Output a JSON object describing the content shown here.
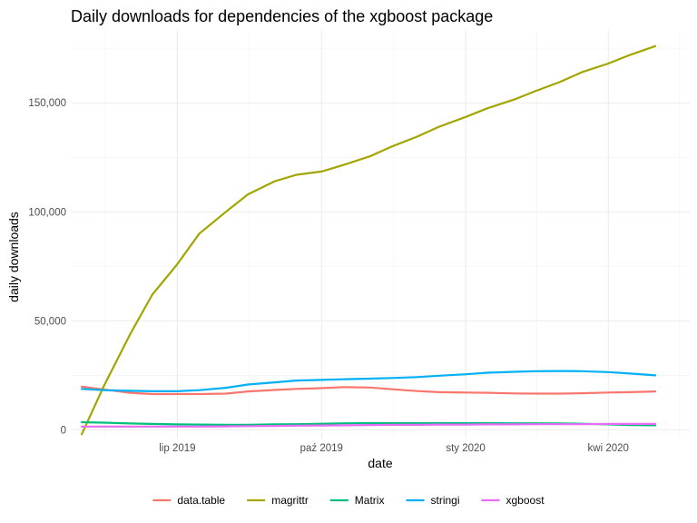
{
  "chart_data": {
    "type": "line",
    "title": "Daily downloads for dependencies of the xgboost package",
    "xlabel": "date",
    "ylabel": "daily downloads",
    "xlim": [
      "2019-04-24",
      "2020-05-23"
    ],
    "ylim": [
      -4000,
      183000
    ],
    "x_ticks": [
      {
        "date": "2019-07-01",
        "label": "lip 2019"
      },
      {
        "date": "2019-10-01",
        "label": "paź 2019"
      },
      {
        "date": "2020-01-01",
        "label": "sty 2020"
      },
      {
        "date": "2020-04-01",
        "label": "kwi 2020"
      }
    ],
    "y_ticks": [
      {
        "value": 0,
        "label": "0"
      },
      {
        "value": 50000,
        "label": "50,000"
      },
      {
        "value": 100000,
        "label": "100,000"
      },
      {
        "value": 150000,
        "label": "150,000"
      }
    ],
    "grid": true,
    "legend_position": "bottom",
    "series": [
      {
        "name": "data.table",
        "color": "#F8766D",
        "points": [
          [
            "2019-05-01",
            19800
          ],
          [
            "2019-05-15",
            18500
          ],
          [
            "2019-06-01",
            17000
          ],
          [
            "2019-06-15",
            16400
          ],
          [
            "2019-07-01",
            16400
          ],
          [
            "2019-07-15",
            16400
          ],
          [
            "2019-08-01",
            16600
          ],
          [
            "2019-08-15",
            17600
          ],
          [
            "2019-09-01",
            18300
          ],
          [
            "2019-09-15",
            18800
          ],
          [
            "2019-10-01",
            19100
          ],
          [
            "2019-10-15",
            19600
          ],
          [
            "2019-11-01",
            19400
          ],
          [
            "2019-11-15",
            18600
          ],
          [
            "2019-12-01",
            17800
          ],
          [
            "2019-12-15",
            17300
          ],
          [
            "2020-01-01",
            17100
          ],
          [
            "2020-01-15",
            17000
          ],
          [
            "2020-02-01",
            16700
          ],
          [
            "2020-02-15",
            16600
          ],
          [
            "2020-03-01",
            16600
          ],
          [
            "2020-03-15",
            16800
          ],
          [
            "2020-04-01",
            17100
          ],
          [
            "2020-04-15",
            17300
          ],
          [
            "2020-05-01",
            17600
          ]
        ]
      },
      {
        "name": "magrittr",
        "color": "#A3A500",
        "points": [
          [
            "2019-05-01",
            -2000
          ],
          [
            "2019-05-15",
            20000
          ],
          [
            "2019-06-01",
            44000
          ],
          [
            "2019-06-15",
            62000
          ],
          [
            "2019-07-01",
            76000
          ],
          [
            "2019-07-15",
            90000
          ],
          [
            "2019-08-01",
            100000
          ],
          [
            "2019-08-15",
            108000
          ],
          [
            "2019-09-01",
            114000
          ],
          [
            "2019-09-15",
            117000
          ],
          [
            "2019-10-01",
            118500
          ],
          [
            "2019-10-15",
            121500
          ],
          [
            "2019-11-01",
            125500
          ],
          [
            "2019-11-15",
            130000
          ],
          [
            "2019-12-01",
            134500
          ],
          [
            "2019-12-15",
            139000
          ],
          [
            "2020-01-01",
            143500
          ],
          [
            "2020-01-15",
            147500
          ],
          [
            "2020-02-01",
            151500
          ],
          [
            "2020-02-15",
            155500
          ],
          [
            "2020-03-01",
            159500
          ],
          [
            "2020-03-15",
            164000
          ],
          [
            "2020-04-01",
            168000
          ],
          [
            "2020-04-15",
            172000
          ],
          [
            "2020-05-01",
            176000
          ]
        ]
      },
      {
        "name": "Matrix",
        "color": "#00BF7D",
        "points": [
          [
            "2019-05-01",
            3500
          ],
          [
            "2019-05-15",
            3300
          ],
          [
            "2019-06-01",
            2900
          ],
          [
            "2019-06-15",
            2700
          ],
          [
            "2019-07-01",
            2500
          ],
          [
            "2019-07-15",
            2400
          ],
          [
            "2019-08-01",
            2300
          ],
          [
            "2019-08-15",
            2300
          ],
          [
            "2019-09-01",
            2500
          ],
          [
            "2019-09-15",
            2600
          ],
          [
            "2019-10-01",
            2800
          ],
          [
            "2019-10-15",
            3000
          ],
          [
            "2019-11-01",
            3100
          ],
          [
            "2019-11-15",
            3100
          ],
          [
            "2019-12-01",
            3100
          ],
          [
            "2019-12-15",
            3100
          ],
          [
            "2020-01-01",
            3100
          ],
          [
            "2020-01-15",
            3100
          ],
          [
            "2020-02-01",
            3000
          ],
          [
            "2020-02-15",
            3000
          ],
          [
            "2020-03-01",
            2900
          ],
          [
            "2020-03-15",
            2800
          ],
          [
            "2020-04-01",
            2500
          ],
          [
            "2020-04-15",
            2200
          ],
          [
            "2020-05-01",
            2100
          ]
        ]
      },
      {
        "name": "stringi",
        "color": "#00B0F6",
        "points": [
          [
            "2019-05-01",
            18800
          ],
          [
            "2019-05-15",
            18200
          ],
          [
            "2019-06-01",
            17900
          ],
          [
            "2019-06-15",
            17700
          ],
          [
            "2019-07-01",
            17700
          ],
          [
            "2019-07-15",
            18200
          ],
          [
            "2019-08-01",
            19300
          ],
          [
            "2019-08-15",
            20800
          ],
          [
            "2019-09-01",
            21800
          ],
          [
            "2019-09-15",
            22600
          ],
          [
            "2019-10-01",
            22900
          ],
          [
            "2019-10-15",
            23200
          ],
          [
            "2019-11-01",
            23500
          ],
          [
            "2019-11-15",
            23800
          ],
          [
            "2019-12-01",
            24200
          ],
          [
            "2019-12-15",
            24800
          ],
          [
            "2020-01-01",
            25500
          ],
          [
            "2020-01-15",
            26200
          ],
          [
            "2020-02-01",
            26600
          ],
          [
            "2020-02-15",
            26900
          ],
          [
            "2020-03-01",
            27000
          ],
          [
            "2020-03-15",
            26900
          ],
          [
            "2020-04-01",
            26500
          ],
          [
            "2020-04-15",
            25800
          ],
          [
            "2020-05-01",
            25000
          ]
        ]
      },
      {
        "name": "xgboost",
        "color": "#E76BF3",
        "points": [
          [
            "2019-05-01",
            1500
          ],
          [
            "2019-05-15",
            1500
          ],
          [
            "2019-06-01",
            1500
          ],
          [
            "2019-06-15",
            1500
          ],
          [
            "2019-07-01",
            1500
          ],
          [
            "2019-07-15",
            1500
          ],
          [
            "2019-08-01",
            1600
          ],
          [
            "2019-08-15",
            1700
          ],
          [
            "2019-09-01",
            1800
          ],
          [
            "2019-09-15",
            1900
          ],
          [
            "2019-10-01",
            2000
          ],
          [
            "2019-10-15",
            2100
          ],
          [
            "2019-11-01",
            2200
          ],
          [
            "2019-11-15",
            2300
          ],
          [
            "2019-12-01",
            2300
          ],
          [
            "2019-12-15",
            2400
          ],
          [
            "2020-01-01",
            2400
          ],
          [
            "2020-01-15",
            2500
          ],
          [
            "2020-02-01",
            2500
          ],
          [
            "2020-02-15",
            2600
          ],
          [
            "2020-03-01",
            2600
          ],
          [
            "2020-03-15",
            2600
          ],
          [
            "2020-04-01",
            2700
          ],
          [
            "2020-04-15",
            2700
          ],
          [
            "2020-05-01",
            2700
          ]
        ]
      }
    ]
  }
}
